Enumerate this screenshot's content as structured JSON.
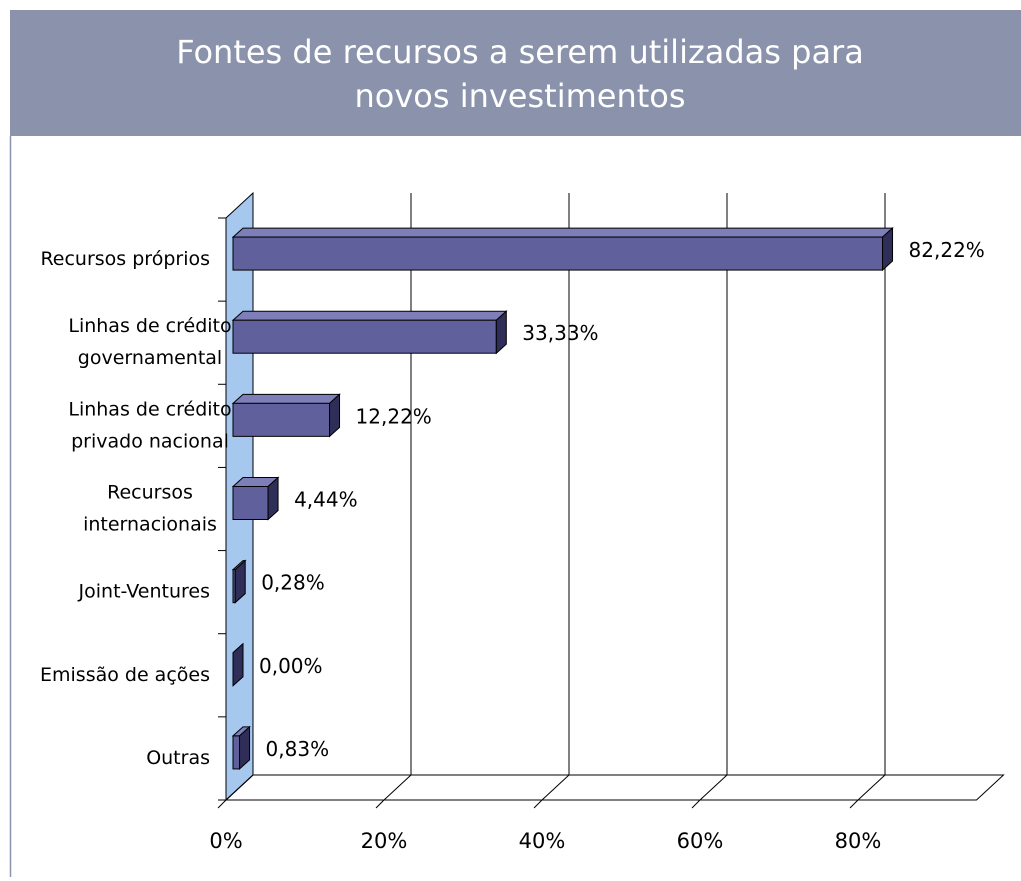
{
  "chart_data": {
    "type": "bar3d_horizontal",
    "title": [
      "Fontes de recursos a serem utilizadas para",
      "novos investimentos"
    ],
    "categories": [
      [
        "Recursos próprios"
      ],
      [
        "Linhas de crédito",
        "governamental"
      ],
      [
        "Linhas de crédito",
        "privado nacional"
      ],
      [
        "Recursos",
        "internacionais"
      ],
      [
        "Joint-Ventures"
      ],
      [
        "Emissão de ações"
      ],
      [
        "Outras"
      ]
    ],
    "values": [
      82.22,
      33.33,
      12.22,
      4.44,
      0.28,
      0,
      0.83
    ],
    "value_labels": [
      "82,22%",
      "33,33%",
      "12,22%",
      "4,44%",
      "0,28%",
      "0,00%",
      "0,83%"
    ],
    "color": "#60609c",
    "xlim": [
      0,
      95
    ],
    "xticks": [
      {
        "value": 0,
        "label": "0%"
      },
      {
        "value": 20,
        "label": "20%"
      },
      {
        "value": 40,
        "label": "40%"
      },
      {
        "value": 60,
        "label": "60%"
      },
      {
        "value": 80,
        "label": "80%"
      }
    ],
    "grid": true
  }
}
